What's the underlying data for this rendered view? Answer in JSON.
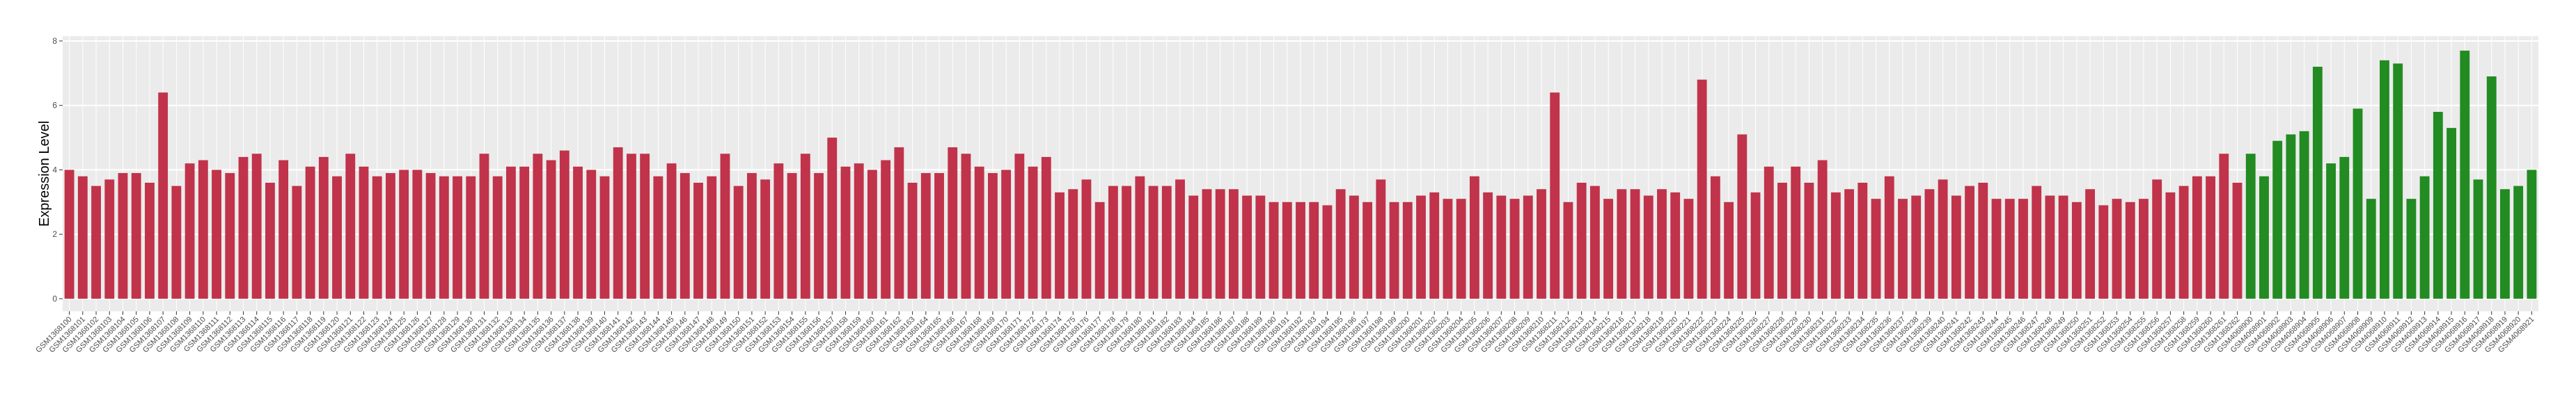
{
  "chart_data": {
    "type": "bar",
    "y_label": "Expression Level",
    "ylim": [
      -0.39,
      8.15
    ],
    "yticks": [
      0,
      2,
      4,
      6,
      8
    ],
    "grid": true,
    "categories": [
      "GSM1368100",
      "GSM1368101",
      "GSM1368102",
      "GSM1368103",
      "GSM1368104",
      "GSM1368105",
      "GSM1368106",
      "GSM1368107",
      "GSM1368108",
      "GSM1368109",
      "GSM1368110",
      "GSM1368111",
      "GSM1368112",
      "GSM1368113",
      "GSM1368114",
      "GSM1368115",
      "GSM1368116",
      "GSM1368117",
      "GSM1368118",
      "GSM1368119",
      "GSM1368120",
      "GSM1368121",
      "GSM1368122",
      "GSM1368123",
      "GSM1368124",
      "GSM1368125",
      "GSM1368126",
      "GSM1368127",
      "GSM1368128",
      "GSM1368129",
      "GSM1368130",
      "GSM1368131",
      "GSM1368132",
      "GSM1368133",
      "GSM1368134",
      "GSM1368135",
      "GSM1368136",
      "GSM1368137",
      "GSM1368138",
      "GSM1368139",
      "GSM1368140",
      "GSM1368141",
      "GSM1368142",
      "GSM1368143",
      "GSM1368144",
      "GSM1368145",
      "GSM1368146",
      "GSM1368147",
      "GSM1368148",
      "GSM1368149",
      "GSM1368150",
      "GSM1368151",
      "GSM1368152",
      "GSM1368153",
      "GSM1368154",
      "GSM1368155",
      "GSM1368156",
      "GSM1368157",
      "GSM1368158",
      "GSM1368159",
      "GSM1368160",
      "GSM1368161",
      "GSM1368162",
      "GSM1368163",
      "GSM1368164",
      "GSM1368165",
      "GSM1368166",
      "GSM1368167",
      "GSM1368168",
      "GSM1368169",
      "GSM1368170",
      "GSM1368171",
      "GSM1368172",
      "GSM1368173",
      "GSM1368174",
      "GSM1368175",
      "GSM1368176",
      "GSM1368177",
      "GSM1368178",
      "GSM1368179",
      "GSM1368180",
      "GSM1368181",
      "GSM1368182",
      "GSM1368183",
      "GSM1368184",
      "GSM1368185",
      "GSM1368186",
      "GSM1368187",
      "GSM1368188",
      "GSM1368189",
      "GSM1368190",
      "GSM1368191",
      "GSM1368192",
      "GSM1368193",
      "GSM1368194",
      "GSM1368195",
      "GSM1368196",
      "GSM1368197",
      "GSM1368198",
      "GSM1368199",
      "GSM1368200",
      "GSM1368201",
      "GSM1368202",
      "GSM1368203",
      "GSM1368204",
      "GSM1368205",
      "GSM1368206",
      "GSM1368207",
      "GSM1368208",
      "GSM1368209",
      "GSM1368210",
      "GSM1368211",
      "GSM1368212",
      "GSM1368213",
      "GSM1368214",
      "GSM1368215",
      "GSM1368216",
      "GSM1368217",
      "GSM1368218",
      "GSM1368219",
      "GSM1368220",
      "GSM1368221",
      "GSM1368222",
      "GSM1368223",
      "GSM1368224",
      "GSM1368225",
      "GSM1368226",
      "GSM1368227",
      "GSM1368228",
      "GSM1368229",
      "GSM1368230",
      "GSM1368231",
      "GSM1368232",
      "GSM1368233",
      "GSM1368234",
      "GSM1368235",
      "GSM1368236",
      "GSM1368237",
      "GSM1368238",
      "GSM1368239",
      "GSM1368240",
      "GSM1368241",
      "GSM1368242",
      "GSM1368243",
      "GSM1368244",
      "GSM1368245",
      "GSM1368246",
      "GSM1368247",
      "GSM1368248",
      "GSM1368249",
      "GSM1368250",
      "GSM1368251",
      "GSM1368252",
      "GSM1368253",
      "GSM1368254",
      "GSM1368255",
      "GSM1368256",
      "GSM1368257",
      "GSM1368258",
      "GSM1368259",
      "GSM1368260",
      "GSM1368261",
      "GSM1368262",
      "GSM4068900",
      "GSM4068901",
      "GSM4068902",
      "GSM4068903",
      "GSM4068904",
      "GSM4068905",
      "GSM4068906",
      "GSM4068907",
      "GSM4068908",
      "GSM4068909",
      "GSM4068910",
      "GSM4068911",
      "GSM4068912",
      "GSM4068913",
      "GSM4068914",
      "GSM4068915",
      "GSM4068916",
      "GSM4068917",
      "GSM4068918",
      "GSM4068919",
      "GSM4068920",
      "GSM4068921"
    ],
    "series": [
      {
        "color": "#c0334a",
        "values": [
          4.0,
          3.8,
          3.5,
          3.7,
          3.9,
          3.9,
          3.6,
          6.4,
          3.5,
          4.2,
          4.3,
          4.0,
          3.9,
          4.4,
          4.5,
          3.6,
          4.3,
          3.5,
          4.1,
          4.4,
          3.8,
          4.5,
          4.1,
          3.8,
          3.9,
          4.0,
          4.0,
          3.9,
          3.8,
          3.8,
          3.8,
          4.5,
          3.8,
          4.1,
          4.1,
          4.5,
          4.3,
          4.6,
          4.1,
          4.0,
          3.8,
          4.7,
          4.5,
          4.5,
          3.8,
          4.2,
          3.9,
          3.6,
          3.8,
          4.5,
          3.5,
          3.9,
          3.7,
          4.2,
          3.9,
          4.5,
          3.9,
          5.0,
          4.1,
          4.2,
          4.0,
          4.3,
          4.7,
          3.6,
          3.9,
          3.9,
          4.7,
          4.5,
          4.1,
          3.9,
          4.0,
          4.5,
          4.1,
          4.4,
          3.3,
          3.4,
          3.7,
          3.0,
          3.5,
          3.5,
          3.8,
          3.5,
          3.5,
          3.7,
          3.2,
          3.4,
          3.4,
          3.4,
          3.2,
          3.2,
          3.0,
          3.0,
          3.0,
          3.0,
          2.9,
          3.4,
          3.2,
          3.0,
          3.7,
          3.0,
          3.0,
          3.2,
          3.3,
          3.1,
          3.1,
          3.8,
          3.3,
          3.2,
          3.1,
          3.2,
          3.4,
          6.4,
          3.0,
          3.6,
          3.5,
          3.1,
          3.4,
          3.4,
          3.2,
          3.4,
          3.3,
          3.1,
          6.8,
          3.8,
          3.0,
          5.1,
          3.3,
          4.1,
          3.6,
          4.1,
          3.6,
          4.3,
          3.3,
          3.4,
          3.6,
          3.1,
          3.8,
          3.1,
          3.2,
          3.4,
          3.7,
          3.2,
          3.5,
          3.6,
          3.1,
          3.1,
          3.1,
          3.5,
          3.2,
          3.2,
          3.0,
          3.4,
          2.9,
          3.1,
          3.0,
          3.1,
          3.7,
          3.3,
          3.5,
          3.8,
          3.8,
          4.5,
          3.6,
          null,
          null,
          null,
          null,
          null,
          null,
          null,
          null,
          null,
          null,
          null,
          null,
          null,
          null,
          null,
          null,
          null,
          null,
          null,
          null,
          null,
          null
        ]
      },
      {
        "color": "#228b22",
        "values": [
          null,
          null,
          null,
          null,
          null,
          null,
          null,
          null,
          null,
          null,
          null,
          null,
          null,
          null,
          null,
          null,
          null,
          null,
          null,
          null,
          null,
          null,
          null,
          null,
          null,
          null,
          null,
          null,
          null,
          null,
          null,
          null,
          null,
          null,
          null,
          null,
          null,
          null,
          null,
          null,
          null,
          null,
          null,
          null,
          null,
          null,
          null,
          null,
          null,
          null,
          null,
          null,
          null,
          null,
          null,
          null,
          null,
          null,
          null,
          null,
          null,
          null,
          null,
          null,
          null,
          null,
          null,
          null,
          null,
          null,
          null,
          null,
          null,
          null,
          null,
          null,
          null,
          null,
          null,
          null,
          null,
          null,
          null,
          null,
          null,
          null,
          null,
          null,
          null,
          null,
          null,
          null,
          null,
          null,
          null,
          null,
          null,
          null,
          null,
          null,
          null,
          null,
          null,
          null,
          null,
          null,
          null,
          null,
          null,
          null,
          null,
          null,
          null,
          null,
          null,
          null,
          null,
          null,
          null,
          null,
          null,
          null,
          null,
          null,
          null,
          null,
          null,
          null,
          null,
          null,
          null,
          null,
          null,
          null,
          null,
          null,
          null,
          null,
          null,
          null,
          null,
          null,
          null,
          null,
          null,
          null,
          null,
          null,
          null,
          null,
          null,
          null,
          null,
          null,
          null,
          null,
          null,
          null,
          null,
          null,
          null,
          null,
          null,
          4.5,
          3.8,
          4.9,
          5.1,
          5.2,
          7.2,
          4.2,
          4.4,
          5.9,
          3.1,
          7.4,
          7.3,
          3.1,
          3.8,
          5.8,
          5.3,
          7.7,
          3.7,
          6.9,
          3.4,
          3.5,
          4.0
        ]
      }
    ]
  }
}
